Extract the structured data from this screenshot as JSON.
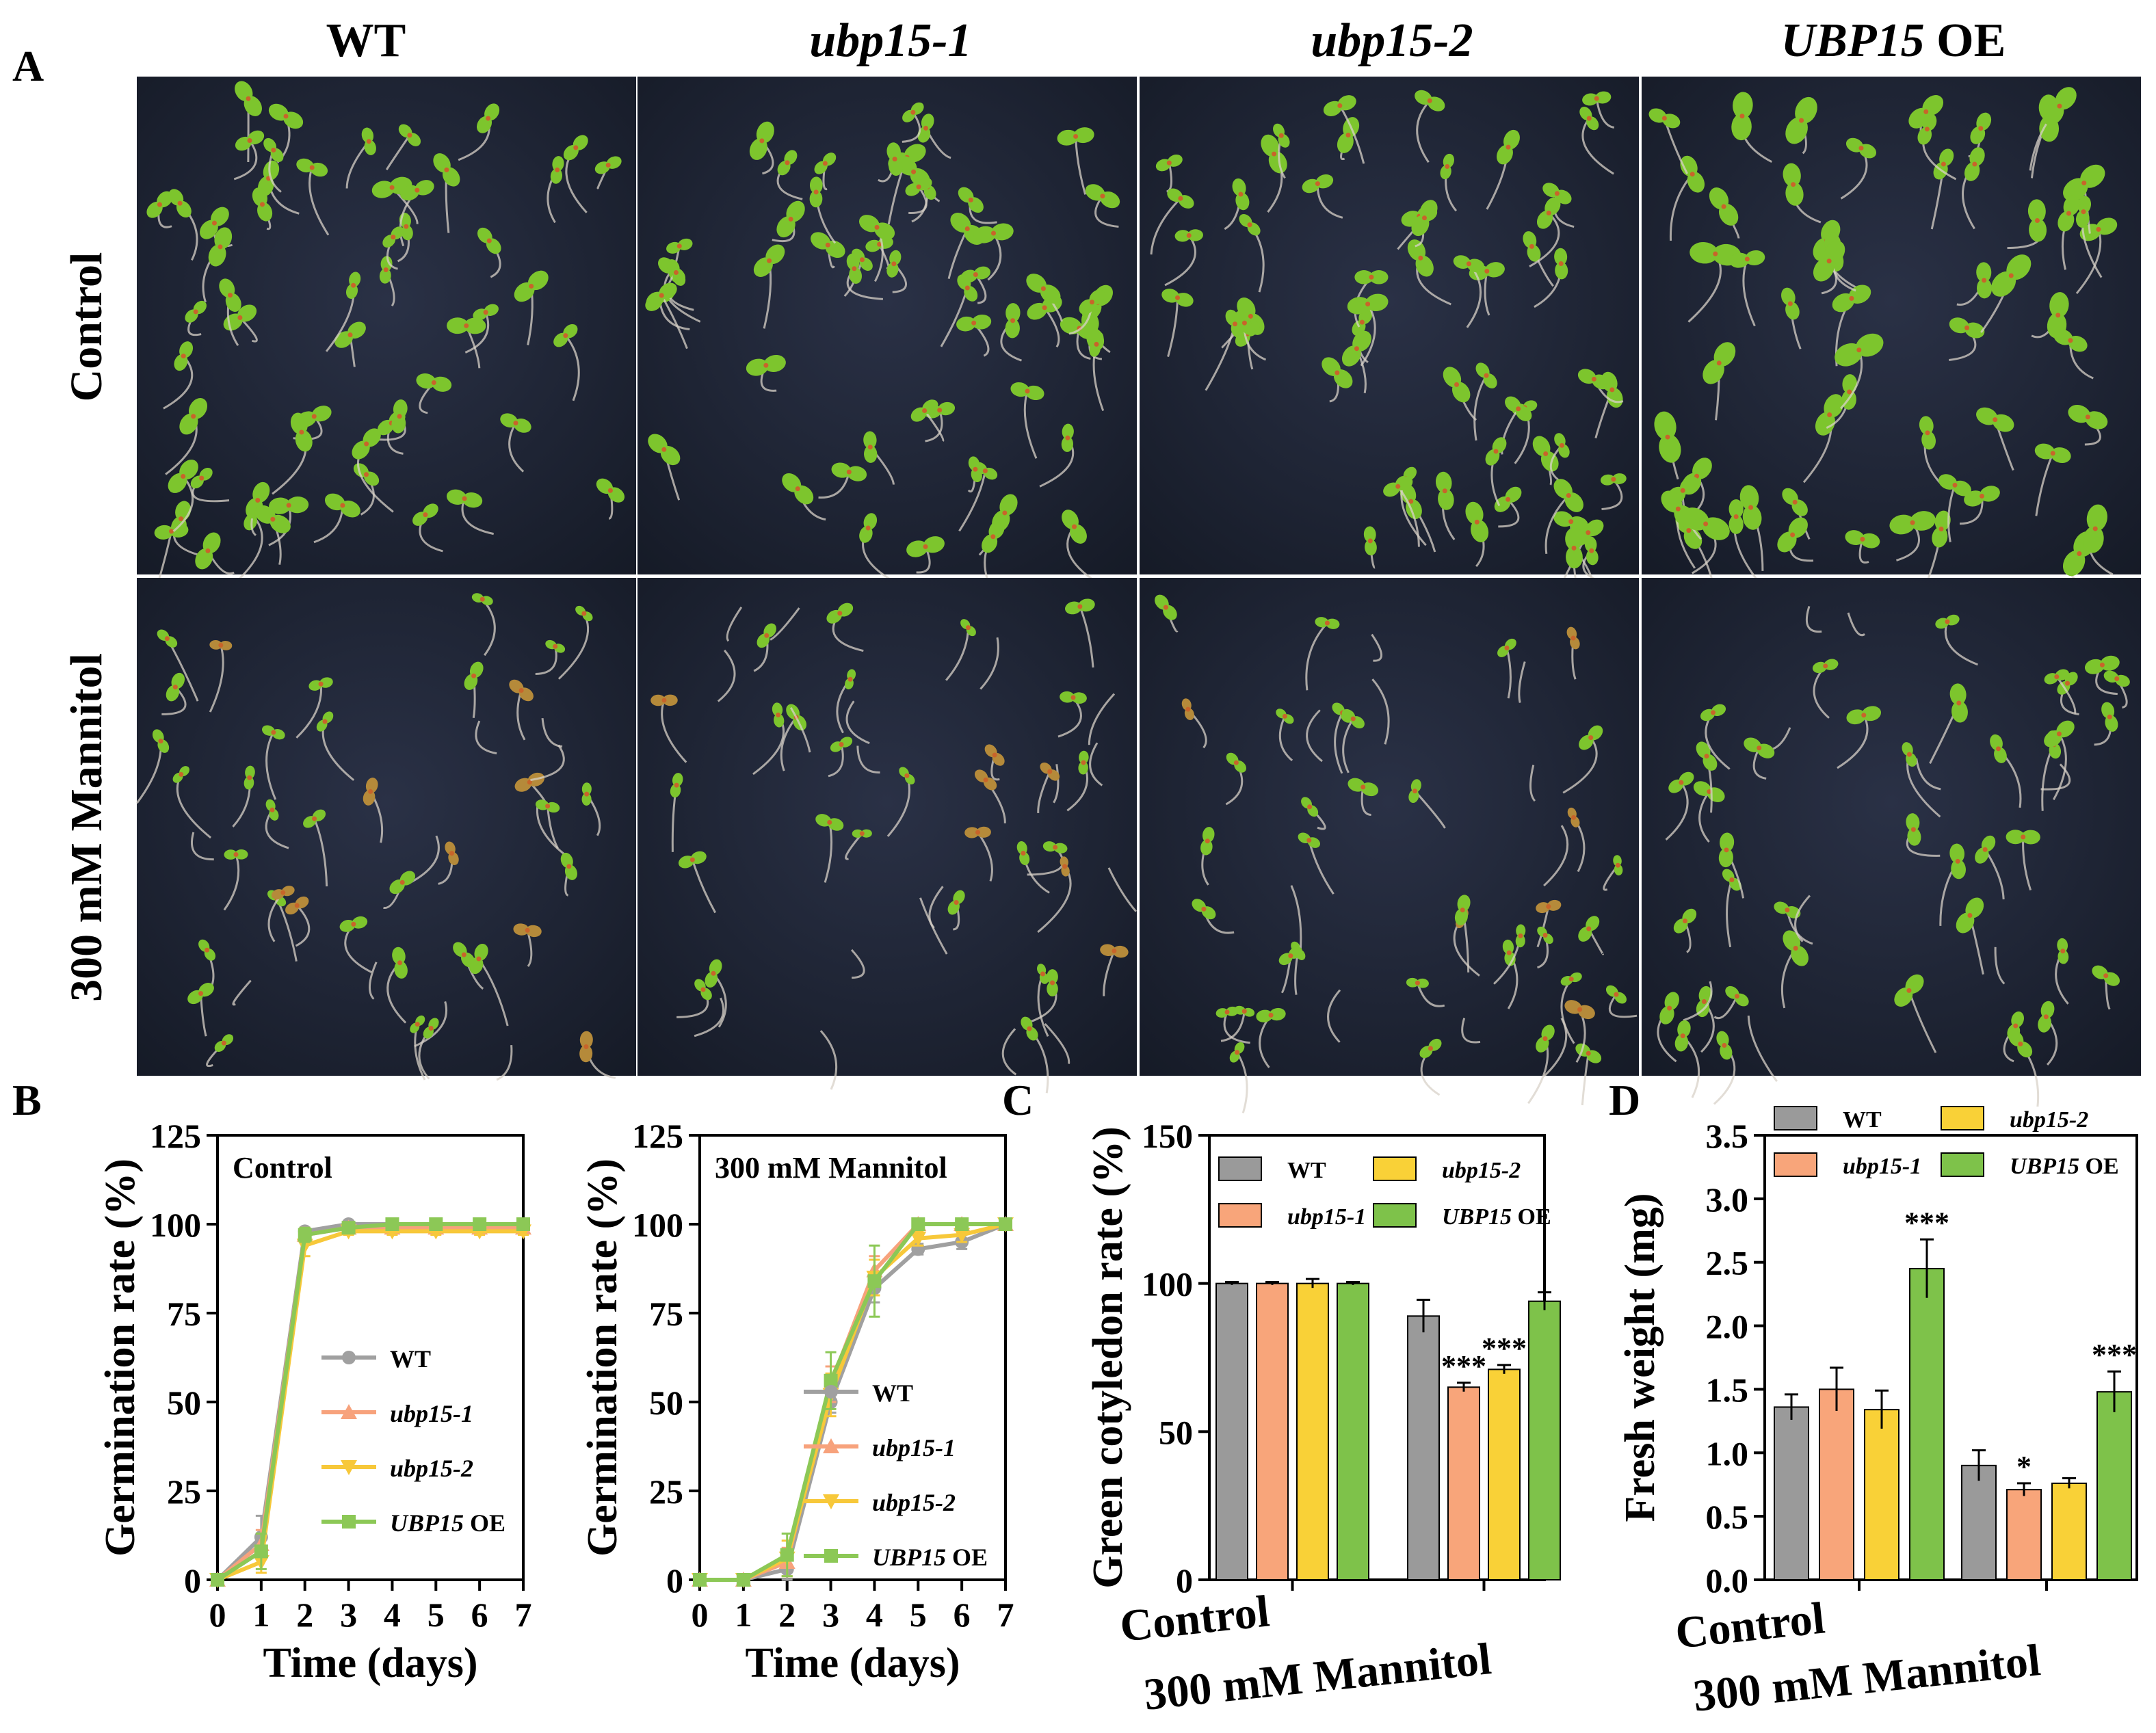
{
  "figure": {
    "panel_labels": [
      "A",
      "B",
      "C",
      "D"
    ],
    "genotypes": [
      {
        "name": "WT",
        "italic_part": "",
        "plain_part": "WT"
      },
      {
        "name": "ubp15-1",
        "italic_part": "ubp15-1",
        "plain_part": ""
      },
      {
        "name": "ubp15-2",
        "italic_part": "ubp15-2",
        "plain_part": ""
      },
      {
        "name": "UBP15 OE",
        "italic_part": "UBP15",
        "plain_part": " OE"
      }
    ],
    "conditions": [
      "Control",
      "300 mM Mannitol"
    ],
    "colors": {
      "WT": "#9a9a9a",
      "ubp15-1": "#f8a57a",
      "ubp15-2": "#f9d137",
      "UBP15 OE": "#7ec24a",
      "WT_line": "#a0a0a0",
      "ubp15-1_line": "#f7a27c",
      "ubp15-2_line": "#f7c83a",
      "UBP15 OE_line": "#8cc856",
      "photo_background": "#1e2434",
      "cotyledon": "#7dc52d",
      "root": "#d8d2c8"
    }
  },
  "chart_data": [
    {
      "type": "line",
      "panel": "B",
      "title": "Control",
      "xlabel": "Time (days)",
      "ylabel": "Germination rate (%)",
      "xlim": [
        0,
        7
      ],
      "ylim": [
        0,
        125
      ],
      "x_ticks": [
        "0",
        "1",
        "2",
        "3",
        "4",
        "5",
        "6",
        "7"
      ],
      "y_ticks": [
        "0",
        "25",
        "50",
        "75",
        "100",
        "125"
      ],
      "legend_position": "lower-right",
      "x": [
        0,
        1,
        2,
        3,
        4,
        5,
        6,
        7
      ],
      "series": [
        {
          "name": "WT",
          "values": [
            0,
            12,
            98,
            100,
            100,
            100,
            100,
            100
          ],
          "err": [
            0,
            6,
            1,
            0.5,
            0.5,
            0.5,
            0.5,
            0.5
          ],
          "marker": "circle"
        },
        {
          "name": "ubp15-1",
          "values": [
            0,
            10,
            97,
            99,
            99,
            99,
            99,
            99
          ],
          "err": [
            0,
            4,
            2,
            1,
            1,
            1,
            1,
            1
          ],
          "marker": "triangle-up"
        },
        {
          "name": "ubp15-2",
          "values": [
            0,
            5,
            94,
            98,
            98,
            98,
            98,
            98
          ],
          "err": [
            0,
            3,
            3,
            1,
            1,
            1,
            1,
            1
          ],
          "marker": "triangle-down"
        },
        {
          "name": "UBP15 OE",
          "values": [
            0,
            8,
            97,
            99,
            100,
            100,
            100,
            100
          ],
          "err": [
            0,
            5,
            2,
            1,
            0.5,
            0.5,
            0.5,
            0.5
          ],
          "marker": "square"
        }
      ]
    },
    {
      "type": "line",
      "panel": "B",
      "title": "300 mM Mannitol",
      "xlabel": "Time (days)",
      "ylabel": "Germination rate (%)",
      "xlim": [
        0,
        7
      ],
      "ylim": [
        0,
        125
      ],
      "x_ticks": [
        "0",
        "1",
        "2",
        "3",
        "4",
        "5",
        "6",
        "7"
      ],
      "y_ticks": [
        "0",
        "25",
        "50",
        "75",
        "100",
        "125"
      ],
      "legend_position": "lower-right",
      "x": [
        0,
        1,
        2,
        3,
        4,
        5,
        6,
        7
      ],
      "series": [
        {
          "name": "WT",
          "values": [
            0,
            0,
            3,
            50,
            82,
            93,
            95,
            100
          ],
          "err": [
            0,
            0,
            3,
            3,
            4,
            1.5,
            2,
            0.5
          ],
          "marker": "circle"
        },
        {
          "name": "ubp15-1",
          "values": [
            0,
            0,
            5,
            55,
            87,
            100,
            100,
            100
          ],
          "err": [
            0,
            0,
            4,
            5,
            4,
            0.5,
            0.5,
            0.5
          ],
          "marker": "triangle-up"
        },
        {
          "name": "ubp15-2",
          "values": [
            0,
            0,
            6,
            52,
            85,
            96,
            97,
            100
          ],
          "err": [
            0,
            0,
            5,
            6,
            5,
            2,
            2,
            0.5
          ],
          "marker": "triangle-down"
        },
        {
          "name": "UBP15 OE",
          "values": [
            0,
            0,
            7,
            56,
            84,
            100,
            100,
            100
          ],
          "err": [
            0,
            0,
            6,
            8,
            10,
            1,
            1,
            0.5
          ],
          "marker": "square"
        }
      ]
    },
    {
      "type": "bar",
      "panel": "C",
      "title": "",
      "xlabel": "",
      "ylabel": "Green cotyledon rate (%)",
      "ylim": [
        0,
        150
      ],
      "y_ticks": [
        "0",
        "50",
        "100",
        "150"
      ],
      "categories": [
        "Control",
        "300 mM Mannitol"
      ],
      "legend_position": "top",
      "series": [
        {
          "name": "WT",
          "values": [
            100,
            89
          ],
          "err": [
            0.5,
            5.5
          ],
          "sig": [
            "",
            ""
          ]
        },
        {
          "name": "ubp15-1",
          "values": [
            100,
            65
          ],
          "err": [
            0.5,
            1.5
          ],
          "sig": [
            "",
            "***"
          ]
        },
        {
          "name": "ubp15-2",
          "values": [
            100,
            71
          ],
          "err": [
            1.5,
            1.5
          ],
          "sig": [
            "",
            "***"
          ]
        },
        {
          "name": "UBP15 OE",
          "values": [
            100,
            94
          ],
          "err": [
            0.5,
            3
          ],
          "sig": [
            "",
            ""
          ]
        }
      ]
    },
    {
      "type": "bar",
      "panel": "D",
      "title": "",
      "xlabel": "",
      "ylabel": "Fresh weight (mg)",
      "ylim": [
        0,
        3.5
      ],
      "y_ticks": [
        "0.0",
        "0.5",
        "1.0",
        "1.5",
        "2.0",
        "2.5",
        "3.0",
        "3.5"
      ],
      "categories": [
        "Control",
        "300 mM Mannitol"
      ],
      "legend_position": "top",
      "series": [
        {
          "name": "WT",
          "values": [
            1.36,
            0.9
          ],
          "err": [
            0.1,
            0.12
          ],
          "sig": [
            "",
            ""
          ]
        },
        {
          "name": "ubp15-1",
          "values": [
            1.5,
            0.71
          ],
          "err": [
            0.17,
            0.05
          ],
          "sig": [
            "",
            "*"
          ]
        },
        {
          "name": "ubp15-2",
          "values": [
            1.34,
            0.76
          ],
          "err": [
            0.15,
            0.04
          ],
          "sig": [
            "",
            ""
          ]
        },
        {
          "name": "UBP15 OE",
          "values": [
            2.45,
            1.48
          ],
          "err": [
            0.23,
            0.16
          ],
          "sig": [
            "***",
            "***"
          ]
        }
      ]
    }
  ]
}
